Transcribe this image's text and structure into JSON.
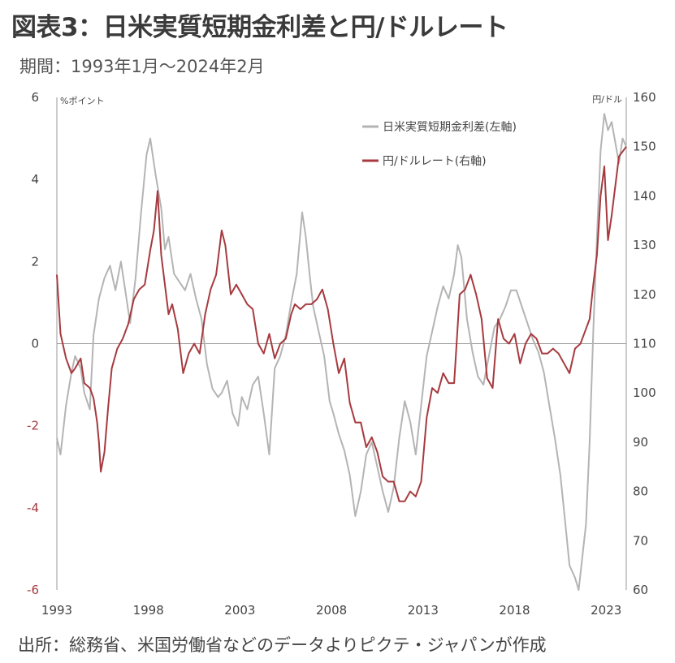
{
  "header": {
    "title": "図表3：日米実質短期金利差と円/ドルレート",
    "subtitle": "期間：1993年1月～2024年2月"
  },
  "footer": {
    "source": "出所：総務省、米国労働省などのデータよりピクテ・ジャパンが作成"
  },
  "colors": {
    "rate_diff": "#b4b4b4",
    "usdjpy": "#a63a3f",
    "axis": "#999999"
  },
  "chart_data": {
    "type": "line",
    "title": "図表3：日米実質短期金利差と円/ドルレート",
    "subtitle": "期間：1993年1月～2024年2月",
    "left_axis": {
      "unit": "%ポイント",
      "ylim": [
        -6,
        6
      ],
      "ticks": [
        "6",
        "4",
        "2",
        "0",
        "-2",
        "-4",
        "-6"
      ]
    },
    "right_axis": {
      "unit": "円/ドル",
      "ylim": [
        60,
        160
      ],
      "ticks": [
        "160",
        "150",
        "140",
        "130",
        "120",
        "110",
        "100",
        "90",
        "80",
        "70",
        "60"
      ]
    },
    "x_axis": {
      "xlim": [
        1993.0,
        2024.1
      ],
      "tick_values": [
        1993,
        1998,
        2003,
        2008,
        2013,
        2018,
        2023
      ],
      "ticks": [
        "1993",
        "1998",
        "2003",
        "2008",
        "2013",
        "2018",
        "2023"
      ]
    },
    "grid": false,
    "legend": {
      "placement": "top-right"
    },
    "series": [
      {
        "name": "日米実質短期金利差(左軸)",
        "axis": "left",
        "x": [
          1993.0,
          1993.2,
          1993.5,
          1993.8,
          1994.0,
          1994.3,
          1994.5,
          1994.8,
          1995.0,
          1995.3,
          1995.6,
          1995.9,
          1996.2,
          1996.5,
          1996.8,
          1997.0,
          1997.3,
          1997.6,
          1997.9,
          1998.1,
          1998.4,
          1998.7,
          1998.9,
          1999.1,
          1999.4,
          1999.7,
          2000.0,
          2000.3,
          2000.6,
          2000.9,
          2001.2,
          2001.5,
          2001.8,
          2002.0,
          2002.3,
          2002.6,
          2002.9,
          2003.1,
          2003.4,
          2003.7,
          2004.0,
          2004.3,
          2004.6,
          2004.9,
          2005.2,
          2005.5,
          2005.8,
          2006.1,
          2006.4,
          2006.6,
          2006.8,
          2007.0,
          2007.3,
          2007.6,
          2007.9,
          2008.1,
          2008.4,
          2008.7,
          2009.0,
          2009.3,
          2009.6,
          2009.9,
          2010.2,
          2010.5,
          2010.8,
          2011.1,
          2011.4,
          2011.7,
          2012.0,
          2012.3,
          2012.6,
          2012.9,
          2013.2,
          2013.5,
          2013.8,
          2014.1,
          2014.4,
          2014.7,
          2014.9,
          2015.1,
          2015.4,
          2015.7,
          2016.0,
          2016.3,
          2016.6,
          2016.9,
          2017.2,
          2017.5,
          2017.8,
          2018.1,
          2018.4,
          2018.7,
          2019.0,
          2019.3,
          2019.6,
          2019.9,
          2020.2,
          2020.5,
          2020.8,
          2021.0,
          2021.3,
          2021.5,
          2021.7,
          2021.9,
          2022.1,
          2022.3,
          2022.5,
          2022.7,
          2022.9,
          2023.1,
          2023.3,
          2023.5,
          2023.7,
          2023.9,
          2024.1
        ],
        "values": [
          -2.3,
          -2.7,
          -1.5,
          -0.7,
          -0.3,
          -0.6,
          -1.2,
          -1.6,
          0.2,
          1.1,
          1.6,
          1.9,
          1.3,
          2.0,
          1.1,
          0.5,
          1.6,
          3.2,
          4.6,
          5.0,
          4.1,
          3.3,
          2.3,
          2.6,
          1.7,
          1.5,
          1.3,
          1.7,
          1.1,
          0.6,
          -0.5,
          -1.1,
          -1.3,
          -1.2,
          -0.9,
          -1.7,
          -2.0,
          -1.3,
          -1.6,
          -1.0,
          -0.8,
          -1.7,
          -2.7,
          -0.6,
          -0.3,
          0.2,
          1.0,
          1.7,
          3.2,
          2.6,
          1.7,
          0.9,
          0.3,
          -0.3,
          -1.4,
          -1.7,
          -2.2,
          -2.6,
          -3.2,
          -4.2,
          -3.6,
          -2.7,
          -2.4,
          -3.0,
          -3.6,
          -4.1,
          -3.5,
          -2.3,
          -1.4,
          -1.9,
          -2.7,
          -1.5,
          -0.3,
          0.3,
          0.9,
          1.4,
          1.1,
          1.7,
          2.4,
          2.1,
          0.6,
          -0.2,
          -0.8,
          -1.0,
          -0.3,
          0.4,
          0.6,
          0.9,
          1.3,
          1.3,
          0.9,
          0.5,
          0.1,
          -0.2,
          -0.7,
          -1.5,
          -2.3,
          -3.2,
          -4.5,
          -5.4,
          -5.7,
          -6.0,
          -5.2,
          -4.4,
          -2.4,
          0.3,
          2.6,
          4.7,
          5.6,
          5.2,
          5.4,
          4.9,
          4.4,
          5.0,
          4.8
        ]
      },
      {
        "name": "円/ドルレート(右軸)",
        "axis": "right",
        "x": [
          1993.0,
          1993.2,
          1993.5,
          1993.8,
          1994.0,
          1994.3,
          1994.5,
          1994.8,
          1995.0,
          1995.2,
          1995.3,
          1995.4,
          1995.6,
          1995.8,
          1996.0,
          1996.3,
          1996.6,
          1996.9,
          1997.2,
          1997.5,
          1997.8,
          1998.1,
          1998.3,
          1998.5,
          1998.7,
          1998.9,
          1999.1,
          1999.3,
          1999.6,
          1999.9,
          2000.2,
          2000.5,
          2000.8,
          2001.1,
          2001.4,
          2001.7,
          2002.0,
          2002.2,
          2002.5,
          2002.8,
          2003.1,
          2003.4,
          2003.7,
          2004.0,
          2004.3,
          2004.6,
          2004.9,
          2005.2,
          2005.5,
          2005.8,
          2006.0,
          2006.3,
          2006.6,
          2006.9,
          2007.2,
          2007.5,
          2007.8,
          2008.1,
          2008.4,
          2008.7,
          2009.0,
          2009.3,
          2009.6,
          2009.9,
          2010.2,
          2010.5,
          2010.8,
          2011.1,
          2011.4,
          2011.7,
          2012.0,
          2012.3,
          2012.6,
          2012.9,
          2013.2,
          2013.5,
          2013.8,
          2014.1,
          2014.4,
          2014.7,
          2015.0,
          2015.3,
          2015.6,
          2015.9,
          2016.2,
          2016.5,
          2016.8,
          2017.1,
          2017.4,
          2017.7,
          2018.0,
          2018.3,
          2018.6,
          2018.9,
          2019.2,
          2019.5,
          2019.8,
          2020.1,
          2020.4,
          2020.7,
          2021.0,
          2021.3,
          2021.6,
          2021.9,
          2022.1,
          2022.3,
          2022.5,
          2022.7,
          2022.9,
          2023.1,
          2023.3,
          2023.5,
          2023.7,
          2023.9,
          2024.1
        ],
        "values": [
          124,
          112,
          107,
          104,
          105,
          107,
          102,
          101,
          99,
          94,
          90,
          84,
          88,
          97,
          105,
          109,
          111,
          114,
          119,
          121,
          122,
          129,
          133,
          141,
          128,
          122,
          116,
          118,
          113,
          104,
          108,
          110,
          108,
          116,
          121,
          124,
          133,
          130,
          120,
          122,
          120,
          118,
          117,
          110,
          108,
          112,
          107,
          110,
          111,
          116,
          118,
          117,
          118,
          118,
          119,
          121,
          117,
          110,
          104,
          107,
          98,
          94,
          94,
          89,
          91,
          88,
          83,
          82,
          82,
          78,
          78,
          80,
          79,
          82,
          95,
          101,
          100,
          104,
          102,
          102,
          120,
          121,
          124,
          120,
          115,
          103,
          101,
          115,
          111,
          110,
          112,
          106,
          110,
          112,
          111,
          108,
          108,
          109,
          108,
          106,
          104,
          109,
          110,
          113,
          115,
          122,
          128,
          140,
          146,
          131,
          136,
          142,
          148,
          149,
          150
        ]
      }
    ]
  }
}
